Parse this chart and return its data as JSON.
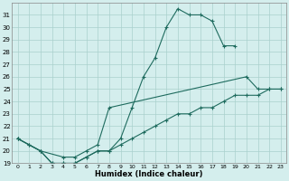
{
  "xlabel": "Humidex (Indice chaleur)",
  "bg_color": "#d4eeed",
  "grid_color": "#aad0cc",
  "line_color": "#1e6b5e",
  "xlim": [
    -0.5,
    23.5
  ],
  "ylim": [
    19,
    32
  ],
  "xticks": [
    0,
    1,
    2,
    3,
    4,
    5,
    6,
    7,
    8,
    9,
    10,
    11,
    12,
    13,
    14,
    15,
    16,
    17,
    18,
    19,
    20,
    21,
    22,
    23
  ],
  "yticks": [
    19,
    20,
    21,
    22,
    23,
    24,
    25,
    26,
    27,
    28,
    29,
    30,
    31
  ],
  "line1": [
    [
      0,
      21.0
    ],
    [
      1,
      20.5
    ],
    [
      2,
      20.0
    ],
    [
      3,
      19.0
    ],
    [
      4,
      19.0
    ],
    [
      5,
      19.0
    ],
    [
      6,
      19.5
    ],
    [
      7,
      20.0
    ],
    [
      8,
      20.0
    ],
    [
      9,
      21.0
    ],
    [
      10,
      23.5
    ],
    [
      11,
      26.0
    ],
    [
      12,
      27.5
    ],
    [
      13,
      30.0
    ],
    [
      14,
      31.5
    ],
    [
      15,
      31.0
    ],
    [
      16,
      31.0
    ],
    [
      17,
      30.5
    ],
    [
      18,
      28.5
    ],
    [
      19,
      28.5
    ]
  ],
  "line2": [
    [
      0,
      21.0
    ],
    [
      2,
      20.0
    ],
    [
      4,
      19.5
    ],
    [
      5,
      19.5
    ],
    [
      6,
      20.0
    ],
    [
      7,
      20.5
    ],
    [
      8,
      23.5
    ],
    [
      20,
      26.0
    ],
    [
      21,
      25.0
    ],
    [
      22,
      25.0
    ],
    [
      23,
      25.0
    ]
  ],
  "line3": [
    [
      0,
      21.0
    ],
    [
      1,
      20.5
    ],
    [
      2,
      20.0
    ],
    [
      3,
      19.0
    ],
    [
      4,
      19.0
    ],
    [
      5,
      19.0
    ],
    [
      6,
      19.5
    ],
    [
      7,
      20.0
    ],
    [
      8,
      20.0
    ],
    [
      9,
      20.5
    ],
    [
      10,
      21.0
    ],
    [
      11,
      21.5
    ],
    [
      12,
      22.0
    ],
    [
      13,
      22.5
    ],
    [
      14,
      23.0
    ],
    [
      15,
      23.0
    ],
    [
      16,
      23.5
    ],
    [
      17,
      23.5
    ],
    [
      18,
      24.0
    ],
    [
      19,
      24.5
    ],
    [
      20,
      24.5
    ],
    [
      21,
      24.5
    ],
    [
      22,
      25.0
    ],
    [
      23,
      25.0
    ]
  ]
}
